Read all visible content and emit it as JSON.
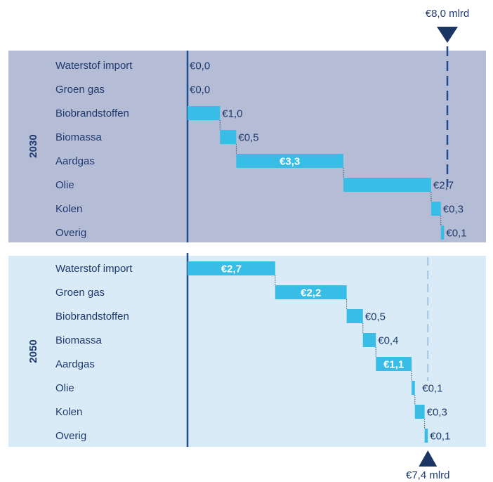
{
  "chart_data": {
    "type": "bar",
    "subtype": "waterfall",
    "categories": [
      "Waterstof import",
      "Groen gas",
      "Biobrandstoffen",
      "Biomassa",
      "Aardgas",
      "Olie",
      "Kolen",
      "Overig"
    ],
    "series": [
      {
        "name": "2030",
        "values": [
          0.0,
          0.0,
          1.0,
          0.5,
          3.3,
          2.7,
          0.3,
          0.1
        ],
        "labels": [
          "€0,0",
          "€0,0",
          "€1,0",
          "€0,5",
          "€3,3",
          "€2,7",
          "€0,3",
          "€0,1"
        ],
        "total_label": "€8,0 mlrd"
      },
      {
        "name": "2050",
        "values": [
          2.7,
          2.2,
          0.5,
          0.4,
          1.1,
          0.1,
          0.3,
          0.1
        ],
        "labels": [
          "€2,7",
          "€2,2",
          "€0,5",
          "€0,4",
          "€1,1",
          "€0,1",
          "€0,3",
          "€0,1"
        ],
        "total_label": "€7,4 mlrd"
      }
    ],
    "totals": [
      8.0,
      7.4
    ],
    "xlim": [
      0,
      8.3
    ],
    "legend": "none",
    "grid": false,
    "colors": {
      "panel_2030": "#b4bcd6",
      "panel_2050": "#d9ebf7",
      "bar": "#38bde6",
      "axis": "#1f4d8f",
      "marker": "#1b3562",
      "text": "#1f3a6e",
      "highlight_text": "#ffffff"
    }
  }
}
